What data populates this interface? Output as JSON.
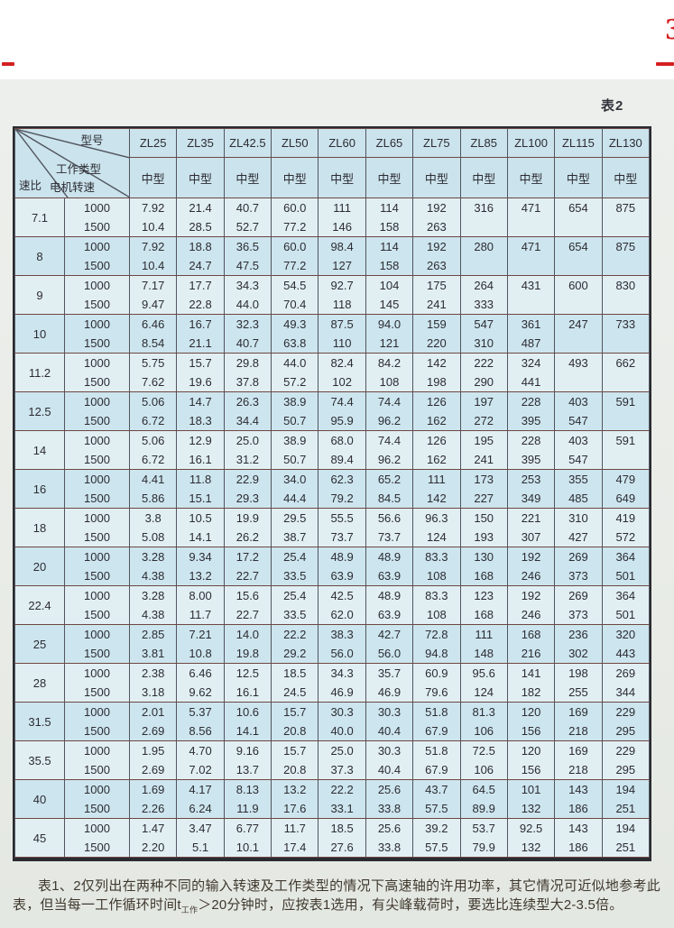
{
  "page": {
    "table_label": "表2",
    "scan_bg_color": "#e9ece7",
    "accent_red": "#d42020",
    "cell_blue_light": "#e1eff3",
    "cell_blue_dark": "#cde5ee"
  },
  "red_marks": {
    "corner_glyph": "3"
  },
  "table": {
    "corner": {
      "model_label": "型号",
      "work_type_label": "工作类型",
      "motor_speed_label": "电机转速",
      "ratio_label": "速比"
    },
    "models": [
      "ZL25",
      "ZL35",
      "ZL42.5",
      "ZL50",
      "ZL60",
      "ZL65",
      "ZL75",
      "ZL85",
      "ZL100",
      "ZL115",
      "ZL130"
    ],
    "duty_types": [
      "中型",
      "中型",
      "中型",
      "中型",
      "中型",
      "中型",
      "中型",
      "中型",
      "中型",
      "中型",
      "中型"
    ],
    "rpm_labels": [
      "1000",
      "1500"
    ],
    "groups": [
      {
        "ratio": "7.1",
        "v1000": [
          "7.92",
          "21.4",
          "40.7",
          "60.0",
          "111",
          "114",
          "192",
          "316",
          "471",
          "654",
          "875"
        ],
        "v1500": [
          "10.4",
          "28.5",
          "52.7",
          "77.2",
          "146",
          "158",
          "263",
          "",
          "",
          "",
          ""
        ]
      },
      {
        "ratio": "8",
        "v1000": [
          "7.92",
          "18.8",
          "36.5",
          "60.0",
          "98.4",
          "114",
          "192",
          "280",
          "471",
          "654",
          "875"
        ],
        "v1500": [
          "10.4",
          "24.7",
          "47.5",
          "77.2",
          "127",
          "158",
          "263",
          "",
          "",
          "",
          ""
        ]
      },
      {
        "ratio": "9",
        "v1000": [
          "7.17",
          "17.7",
          "34.3",
          "54.5",
          "92.7",
          "104",
          "175",
          "264",
          "431",
          "600",
          "830"
        ],
        "v1500": [
          "9.47",
          "22.8",
          "44.0",
          "70.4",
          "118",
          "145",
          "241",
          "333",
          "",
          "",
          ""
        ]
      },
      {
        "ratio": "10",
        "v1000": [
          "6.46",
          "16.7",
          "32.3",
          "49.3",
          "87.5",
          "94.0",
          "159",
          "547",
          "361",
          "247",
          "733"
        ],
        "v1500": [
          "8.54",
          "21.1",
          "40.7",
          "63.8",
          "110",
          "121",
          "220",
          "310",
          "487",
          "",
          ""
        ]
      },
      {
        "ratio": "11.2",
        "v1000": [
          "5.75",
          "15.7",
          "29.8",
          "44.0",
          "82.4",
          "84.2",
          "142",
          "222",
          "324",
          "493",
          "662"
        ],
        "v1500": [
          "7.62",
          "19.6",
          "37.8",
          "57.2",
          "102",
          "108",
          "198",
          "290",
          "441",
          "",
          ""
        ]
      },
      {
        "ratio": "12.5",
        "v1000": [
          "5.06",
          "14.7",
          "26.3",
          "38.9",
          "74.4",
          "74.4",
          "126",
          "197",
          "228",
          "403",
          "591"
        ],
        "v1500": [
          "6.72",
          "18.3",
          "34.4",
          "50.7",
          "95.9",
          "96.2",
          "162",
          "272",
          "395",
          "547",
          ""
        ]
      },
      {
        "ratio": "14",
        "v1000": [
          "5.06",
          "12.9",
          "25.0",
          "38.9",
          "68.0",
          "74.4",
          "126",
          "195",
          "228",
          "403",
          "591"
        ],
        "v1500": [
          "6.72",
          "16.1",
          "31.2",
          "50.7",
          "89.4",
          "96.2",
          "162",
          "241",
          "395",
          "547",
          ""
        ]
      },
      {
        "ratio": "16",
        "v1000": [
          "4.41",
          "11.8",
          "22.9",
          "34.0",
          "62.3",
          "65.2",
          "111",
          "173",
          "253",
          "355",
          "479"
        ],
        "v1500": [
          "5.86",
          "15.1",
          "29.3",
          "44.4",
          "79.2",
          "84.5",
          "142",
          "227",
          "349",
          "485",
          "649"
        ]
      },
      {
        "ratio": "18",
        "v1000": [
          "3.8",
          "10.5",
          "19.9",
          "29.5",
          "55.5",
          "56.6",
          "96.3",
          "150",
          "221",
          "310",
          "419"
        ],
        "v1500": [
          "5.08",
          "14.1",
          "26.2",
          "38.7",
          "73.7",
          "73.7",
          "124",
          "193",
          "307",
          "427",
          "572"
        ]
      },
      {
        "ratio": "20",
        "v1000": [
          "3.28",
          "9.34",
          "17.2",
          "25.4",
          "48.9",
          "48.9",
          "83.3",
          "130",
          "192",
          "269",
          "364"
        ],
        "v1500": [
          "4.38",
          "13.2",
          "22.7",
          "33.5",
          "63.9",
          "63.9",
          "108",
          "168",
          "246",
          "373",
          "501"
        ]
      },
      {
        "ratio": "22.4",
        "v1000": [
          "3.28",
          "8.00",
          "15.6",
          "25.4",
          "42.5",
          "48.9",
          "83.3",
          "123",
          "192",
          "269",
          "364"
        ],
        "v1500": [
          "4.38",
          "11.7",
          "22.7",
          "33.5",
          "62.0",
          "63.9",
          "108",
          "168",
          "246",
          "373",
          "501"
        ]
      },
      {
        "ratio": "25",
        "v1000": [
          "2.85",
          "7.21",
          "14.0",
          "22.2",
          "38.3",
          "42.7",
          "72.8",
          "111",
          "168",
          "236",
          "320"
        ],
        "v1500": [
          "3.81",
          "10.8",
          "19.8",
          "29.2",
          "56.0",
          "56.0",
          "94.8",
          "148",
          "216",
          "302",
          "443"
        ]
      },
      {
        "ratio": "28",
        "v1000": [
          "2.38",
          "6.46",
          "12.5",
          "18.5",
          "34.3",
          "35.7",
          "60.9",
          "95.6",
          "141",
          "198",
          "269"
        ],
        "v1500": [
          "3.18",
          "9.62",
          "16.1",
          "24.5",
          "46.9",
          "46.9",
          "79.6",
          "124",
          "182",
          "255",
          "344"
        ]
      },
      {
        "ratio": "31.5",
        "v1000": [
          "2.01",
          "5.37",
          "10.6",
          "15.7",
          "30.3",
          "30.3",
          "51.8",
          "81.3",
          "120",
          "169",
          "229"
        ],
        "v1500": [
          "2.69",
          "8.56",
          "14.1",
          "20.8",
          "40.0",
          "40.4",
          "67.9",
          "106",
          "156",
          "218",
          "295"
        ]
      },
      {
        "ratio": "35.5",
        "v1000": [
          "1.95",
          "4.70",
          "9.16",
          "15.7",
          "25.0",
          "30.3",
          "51.8",
          "72.5",
          "120",
          "169",
          "229"
        ],
        "v1500": [
          "2.69",
          "7.02",
          "13.7",
          "20.8",
          "37.3",
          "40.4",
          "67.9",
          "106",
          "156",
          "218",
          "295"
        ]
      },
      {
        "ratio": "40",
        "v1000": [
          "1.69",
          "4.17",
          "8.13",
          "13.2",
          "22.2",
          "25.6",
          "43.7",
          "64.5",
          "101",
          "143",
          "194"
        ],
        "v1500": [
          "2.26",
          "6.24",
          "11.9",
          "17.6",
          "33.1",
          "33.8",
          "57.5",
          "89.9",
          "132",
          "186",
          "251"
        ]
      },
      {
        "ratio": "45",
        "v1000": [
          "1.47",
          "3.47",
          "6.77",
          "11.7",
          "18.5",
          "25.6",
          "39.2",
          "53.7",
          "92.5",
          "143",
          "194"
        ],
        "v1500": [
          "2.20",
          "5.1",
          "10.1",
          "17.4",
          "27.6",
          "33.8",
          "57.5",
          "79.9",
          "132",
          "186",
          "251"
        ]
      }
    ]
  },
  "footnote": {
    "before_sub": "表1、2仅列出在两种不同的输入转速及工作类型的情况下高速轴的许用功率，其它情况可近似地参考此表，但当每一工作循环时间t",
    "sub": "工作",
    "after_sub": "＞20分钟时，应按表1选用，有尖峰载荷时，要选比连续型大2-3.5倍。"
  }
}
